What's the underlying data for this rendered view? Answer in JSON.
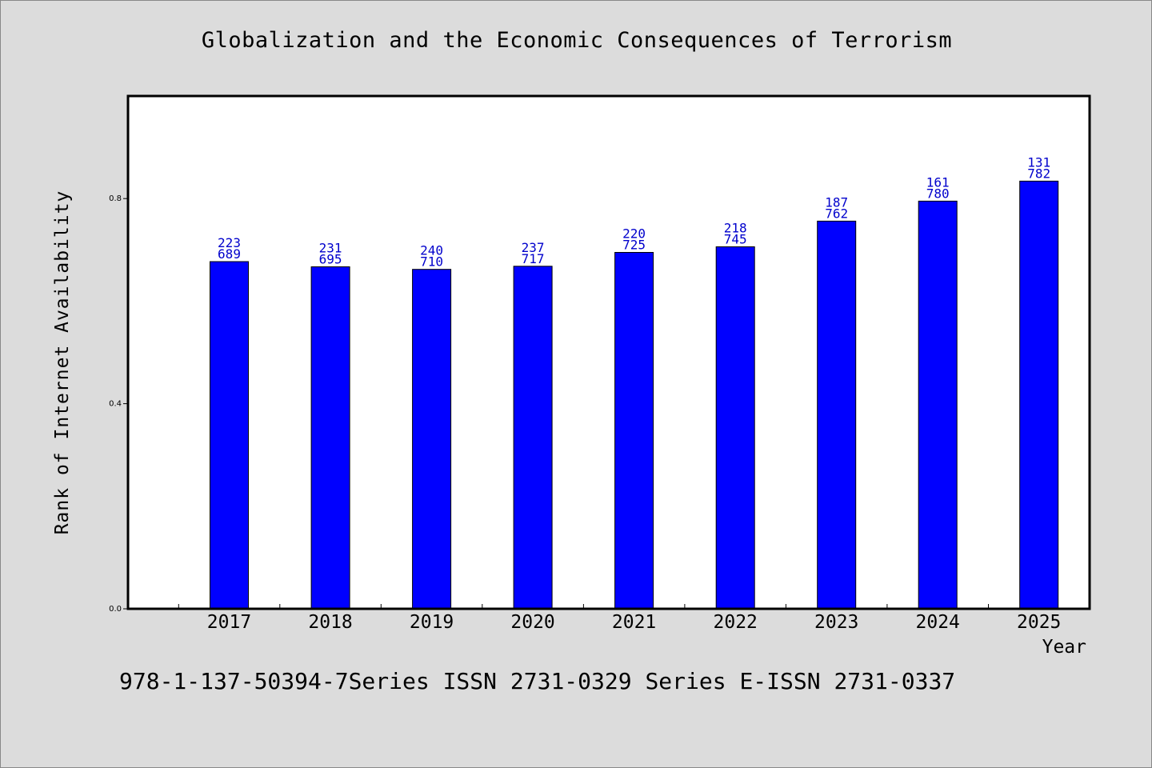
{
  "footer": {
    "text": "978-1-137-50394-7Series ISSN 2731-0329 Series E-ISSN 2731-0337"
  },
  "colors": {
    "background": "#dcdcdc",
    "plot_background": "#ffffff",
    "bar_fill": "#0000ff",
    "bar_label": "#0000cc",
    "axis": "#000000"
  },
  "chart_data": {
    "type": "bar",
    "title": "Globalization and the Economic Consequences of Terrorism",
    "xlabel": "Year",
    "ylabel": "Rank of Internet Availability",
    "ylim": [
      0,
      1.0
    ],
    "yticks": [
      "0.0",
      "0.4",
      "0.8"
    ],
    "ytick_values": [
      0.0,
      0.4,
      0.8
    ],
    "xlim": [
      2016,
      2025.5
    ],
    "categories": [
      "2017",
      "2018",
      "2019",
      "2020",
      "2021",
      "2022",
      "2023",
      "2024",
      "2025"
    ],
    "values": [
      0.677,
      0.667,
      0.662,
      0.668,
      0.695,
      0.706,
      0.756,
      0.795,
      0.834
    ],
    "data_labels_top": [
      "223",
      "231",
      "240",
      "237",
      "220",
      "218",
      "187",
      "161",
      "131"
    ],
    "data_labels_bottom": [
      "689",
      "695",
      "710",
      "717",
      "725",
      "745",
      "762",
      "780",
      "782"
    ],
    "grid": false,
    "legend": "none"
  }
}
